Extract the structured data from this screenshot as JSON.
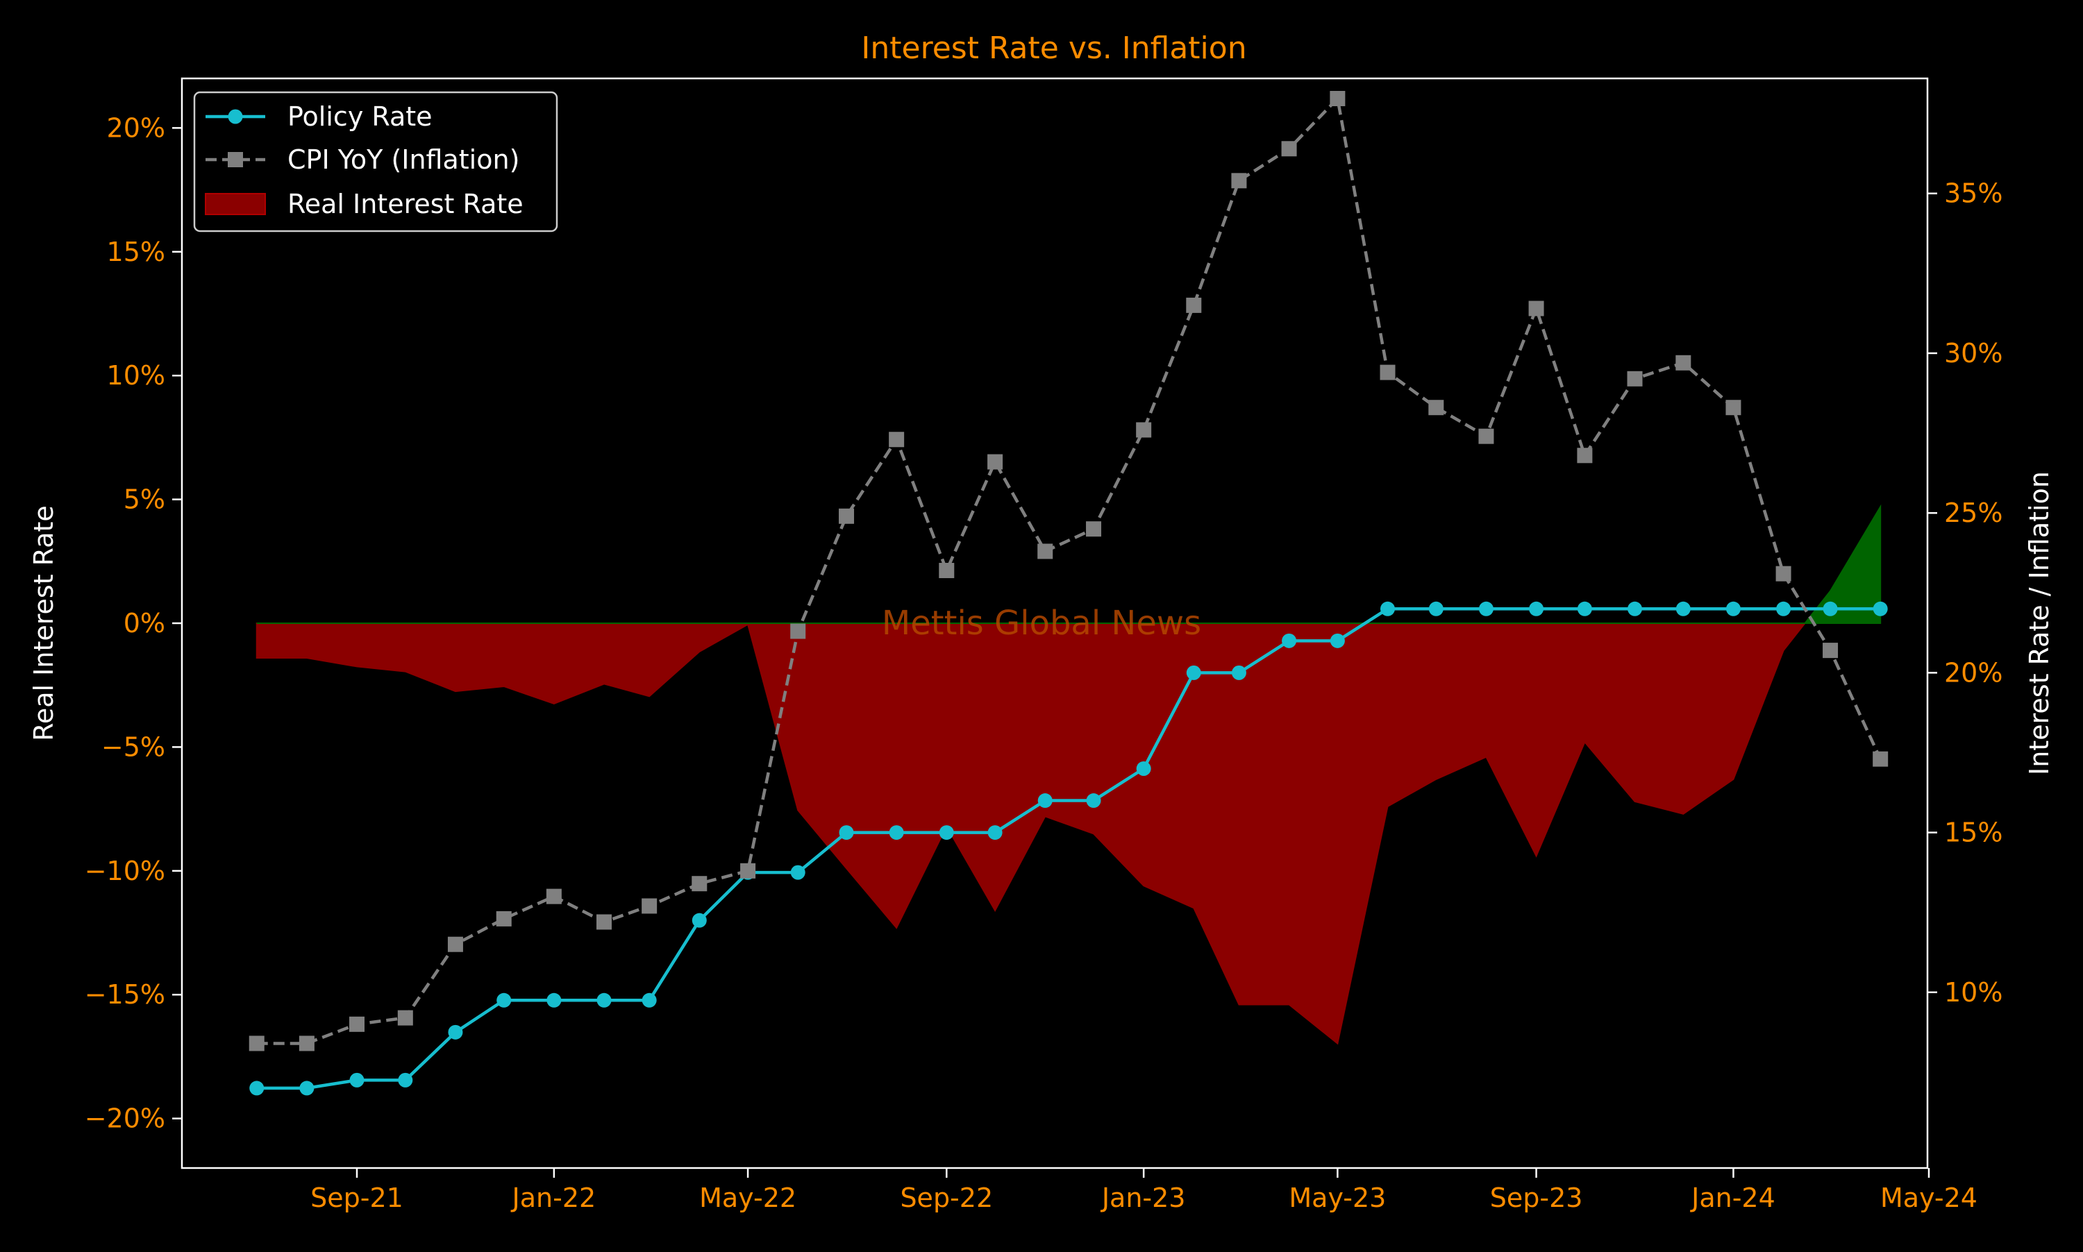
{
  "chart_data": {
    "type": "line",
    "title": "Interest Rate vs. Inflation",
    "ylabel_left": "Real Interest Rate",
    "ylabel_right": "Interest Rate / Inflation",
    "watermark": "Mettis Global News",
    "x_ticks": [
      "Sep-21",
      "Jan-22",
      "May-22",
      "Sep-22",
      "Jan-23",
      "May-23",
      "Sep-23",
      "Jan-24",
      "May-24"
    ],
    "x_tick_dates": [
      "2021-09-01",
      "2022-01-01",
      "2022-05-01",
      "2022-09-01",
      "2023-01-01",
      "2023-05-01",
      "2023-09-01",
      "2024-01-01",
      "2024-05-01"
    ],
    "y_left_ticks": [
      "−20%",
      "−15%",
      "−10%",
      "−5%",
      "0%",
      "5%",
      "10%",
      "15%",
      "20%"
    ],
    "y_left_tick_values": [
      -20,
      -15,
      -10,
      -5,
      0,
      5,
      10,
      15,
      20
    ],
    "y_left_range": [
      -22,
      22
    ],
    "y_right_ticks": [
      "10%",
      "15%",
      "20%",
      "25%",
      "30%",
      "35%"
    ],
    "y_right_tick_values": [
      10,
      15,
      20,
      25,
      30,
      35
    ],
    "y_right_range": [
      4.5,
      38.6
    ],
    "dates": [
      "2021-07-01",
      "2021-08-01",
      "2021-09-01",
      "2021-10-01",
      "2021-11-01",
      "2021-12-01",
      "2022-01-01",
      "2022-02-01",
      "2022-03-01",
      "2022-04-01",
      "2022-05-01",
      "2022-06-01",
      "2022-07-01",
      "2022-08-01",
      "2022-09-01",
      "2022-10-01",
      "2022-11-01",
      "2022-12-01",
      "2023-01-01",
      "2023-02-01",
      "2023-03-01",
      "2023-04-01",
      "2023-05-01",
      "2023-06-01",
      "2023-07-01",
      "2023-08-01",
      "2023-09-01",
      "2023-10-01",
      "2023-11-01",
      "2023-12-01",
      "2024-01-01",
      "2024-02-01",
      "2024-03-01",
      "2024-04-01"
    ],
    "series": [
      {
        "name": "Policy Rate",
        "axis": "right",
        "color": "#17becf",
        "marker": "circle",
        "values": [
          7.0,
          7.0,
          7.25,
          7.25,
          8.75,
          9.75,
          9.75,
          9.75,
          9.75,
          12.25,
          13.75,
          13.75,
          15.0,
          15.0,
          15.0,
          15.0,
          16.0,
          16.0,
          17.0,
          20.0,
          20.0,
          21.0,
          21.0,
          22.0,
          22.0,
          22.0,
          22.0,
          22.0,
          22.0,
          22.0,
          22.0,
          22.0,
          22.0,
          22.0
        ]
      },
      {
        "name": "CPI YoY (Inflation)",
        "axis": "right",
        "color": "#808080",
        "marker": "square",
        "values": [
          8.4,
          8.4,
          9.0,
          9.2,
          11.5,
          12.3,
          13.0,
          12.2,
          12.7,
          13.4,
          13.8,
          21.3,
          24.9,
          27.3,
          23.2,
          26.6,
          23.8,
          24.5,
          27.6,
          31.5,
          35.4,
          36.4,
          37.97,
          29.4,
          28.3,
          27.4,
          31.4,
          26.8,
          29.2,
          29.7,
          28.3,
          23.1,
          20.7,
          17.3
        ]
      }
    ],
    "area": {
      "name": "Real Interest Rate",
      "axis": "left",
      "negative_color": "#8b0000",
      "positive_color": "#006400",
      "values": [
        -1.4,
        -1.4,
        -1.75,
        -1.95,
        -2.75,
        -2.55,
        -3.25,
        -2.45,
        -2.95,
        -1.15,
        -0.05,
        -7.55,
        -9.9,
        -12.3,
        -8.2,
        -11.6,
        -7.8,
        -8.5,
        -10.6,
        -11.5,
        -15.4,
        -15.4,
        -16.97,
        -7.4,
        -6.3,
        -5.4,
        -9.4,
        -4.8,
        -7.2,
        -7.7,
        -6.3,
        -1.1,
        1.3,
        4.7
      ]
    },
    "legend": {
      "placement": "top-left",
      "items": [
        {
          "label": "Policy Rate",
          "kind": "line-circle",
          "color": "#17becf"
        },
        {
          "label": "CPI YoY (Inflation)",
          "kind": "dashed-square",
          "color": "#808080"
        },
        {
          "label": "Real Interest Rate",
          "kind": "patch",
          "color": "#8b0000"
        }
      ]
    },
    "colors": {
      "background": "#000000",
      "tick_text": "#ff8c00",
      "axis_label": "#ffffff",
      "title": "#ff8c00",
      "spine": "#ffffff",
      "watermark": "#b34700"
    },
    "grid": false
  }
}
